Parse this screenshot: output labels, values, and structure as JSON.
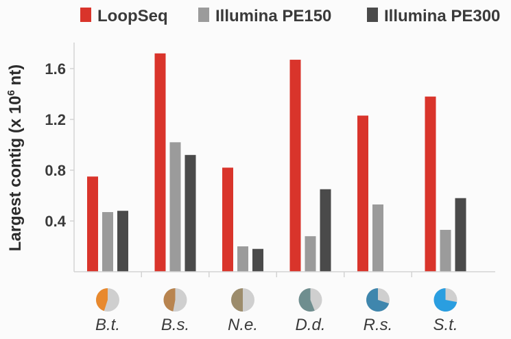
{
  "chart_data": {
    "type": "bar",
    "ylabel": "Largest contig (x 10",
    "ylabel_sup": "6",
    "ylabel_end": " nt)",
    "xlabel": "",
    "ylim": [
      0,
      1.8
    ],
    "yticks": [
      0.4,
      0.8,
      1.2,
      1.6
    ],
    "ytick_labels": [
      "0.4",
      "0.8",
      "1.2",
      "1.6"
    ],
    "categories": [
      "B.t.",
      "B.s.",
      "N.e.",
      "D.d.",
      "R.s.",
      "S.t."
    ],
    "series": [
      {
        "name": "LoopSeq",
        "color": "#d9342b",
        "values": [
          0.75,
          1.72,
          0.82,
          1.67,
          1.23,
          1.38
        ]
      },
      {
        "name": "Illumina PE150",
        "color": "#9b9b9b",
        "values": [
          0.47,
          1.02,
          0.2,
          0.28,
          0.53,
          0.33
        ]
      },
      {
        "name": "Illumina PE300",
        "color": "#4a4a4a",
        "values": [
          0.48,
          0.92,
          0.18,
          0.65,
          null,
          0.58
        ]
      }
    ],
    "category_pies": [
      {
        "icon": "pie-icon",
        "fill_fraction": 0.45,
        "color": "#e8892e"
      },
      {
        "icon": "pie-icon",
        "fill_fraction": 0.47,
        "color": "#b8844f"
      },
      {
        "icon": "pie-icon",
        "fill_fraction": 0.5,
        "color": "#9c8c6c"
      },
      {
        "icon": "pie-icon",
        "fill_fraction": 0.56,
        "color": "#6f8e8f"
      },
      {
        "icon": "pie-icon",
        "fill_fraction": 0.7,
        "color": "#3f86ad"
      },
      {
        "icon": "pie-icon",
        "fill_fraction": 0.72,
        "color": "#2a9ee0"
      }
    ],
    "pie_rest_color": "#cfcfcf",
    "grid": false,
    "legend_position": "top"
  }
}
